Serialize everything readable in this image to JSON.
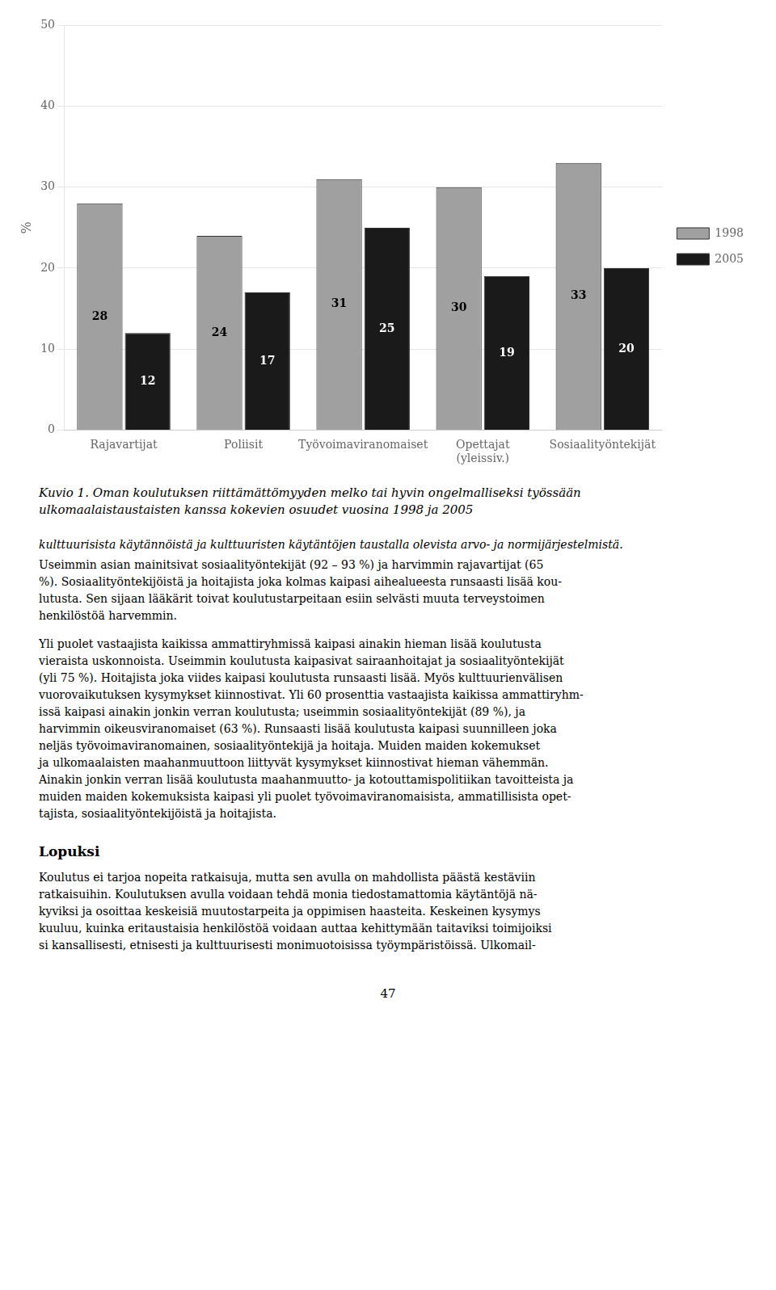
{
  "chart_data": {
    "type": "bar",
    "title": "Kuvio 1. Oman koulutuksen riittämättömyyden melko tai hyvin ongelmalliseksi työssään\nulkomaalaistaustaisten kanssa kokevien osuudet vuosina 1998 ja 2005",
    "y_label": "%",
    "categories": [
      "Rajavartijat",
      "Poliisit",
      "Työvoimaviranomaiset",
      "Opettajat\n(yleissiv.)",
      "Sosiaalityöntekijät"
    ],
    "series": [
      {
        "name": "1998",
        "color": "#a0a0a0",
        "values": [
          28,
          24,
          31,
          30,
          33
        ]
      },
      {
        "name": "2005",
        "color": "#1a1a1a",
        "values": [
          12,
          17,
          25,
          19,
          20
        ]
      }
    ],
    "ylim": [
      0,
      50
    ],
    "yticks": [
      0,
      10,
      20,
      30,
      40,
      50
    ],
    "grid": true,
    "legend": "right",
    "data_labels": true,
    "annotations": [
      "kulttuurisista käytännöistä ja kulttuuristen käytäntöjen taustalla olevista arvo- ja normijärjestelmistä.",
      "Useimmin asian mainitsivat sosiaalityöntekijät (92 – 93 %) ja harvimmin rajavartijat (65\n%). Sosiaalityöntekijöistä ja hoitajista joka kolmas kaipasi aihealueesta runsaasti lisää kou-\nlutusta. Sen sijaan lääkärit toivat koulutustarpeitaan esiin selvästi muuta terveystoimen\nhenkilöstöä harvemmin.",
      "Yli puolet vastaajista kaikissa ammattiryhmissä kaipasi ainakin hieman lisää koulutusta\nvieraista uskonnoista. Useimmin koulutusta kaipasivat sairaanhoitajat ja sosiaalityöntekijät\n(yli 75 %). Hoitajista joka viides kaipasi koulutusta runsaasti lisää. Myös kulttuurienvälisen\nvuorovaikutuksen kysymykset kiinnostivat. Yli 60 prosenttia vastaajista kaikissa ammattiryhm-\nissä kaipasi ainakin jonkin verran koulutusta; useimmin sosiaalityöntekijät (89 %), ja\nharvimmin oikeusviranomaiset (63 %). Runsaasti lisää koulutusta kaipasi suunnilleen joka\nneljäs työvoimaviranomainen, sosiaalityöntekijä ja hoitaja. Muiden maiden kokemukset\nja ulkomaalaisten maahanmuuttoon liittyvät kysymykset kiinnostivat hieman vähemmän.\nAinakin jonkin verran lisää koulutusta maahanmuutto- ja kotouttamispolitiikan tavoitteista ja\nmuiden maiden kokemuksista kaipasi yli puolet työvoimaviranomaisista, ammatillisista opet-\ntajista, sosiaalityöntekijöistä ja hoitajista.",
      "Lopuksi",
      "Koulutus ei tarjoa nopeita ratkaisuja, mutta sen avulla on mahdollista päästä kestäviin\nratkaisuihin. Koulutuksen avulla voidaan tehdä monia tiedostamattomia käytäntöjä nä-\nkyviksi ja osoittaa keskeisiä muutostarpeita ja oppimisen haasteita. Keskeinen kysymys\nkuuluu, kuinka eritaustaisia henkilöstöä voidaan auttaa kehittymään taitaviksi toimijoiksi\nsi kansallisesti, etnisesti ja kulttuurisesti monimuotoisissa työympäristöissä. Ulkomail-",
      "47"
    ]
  }
}
